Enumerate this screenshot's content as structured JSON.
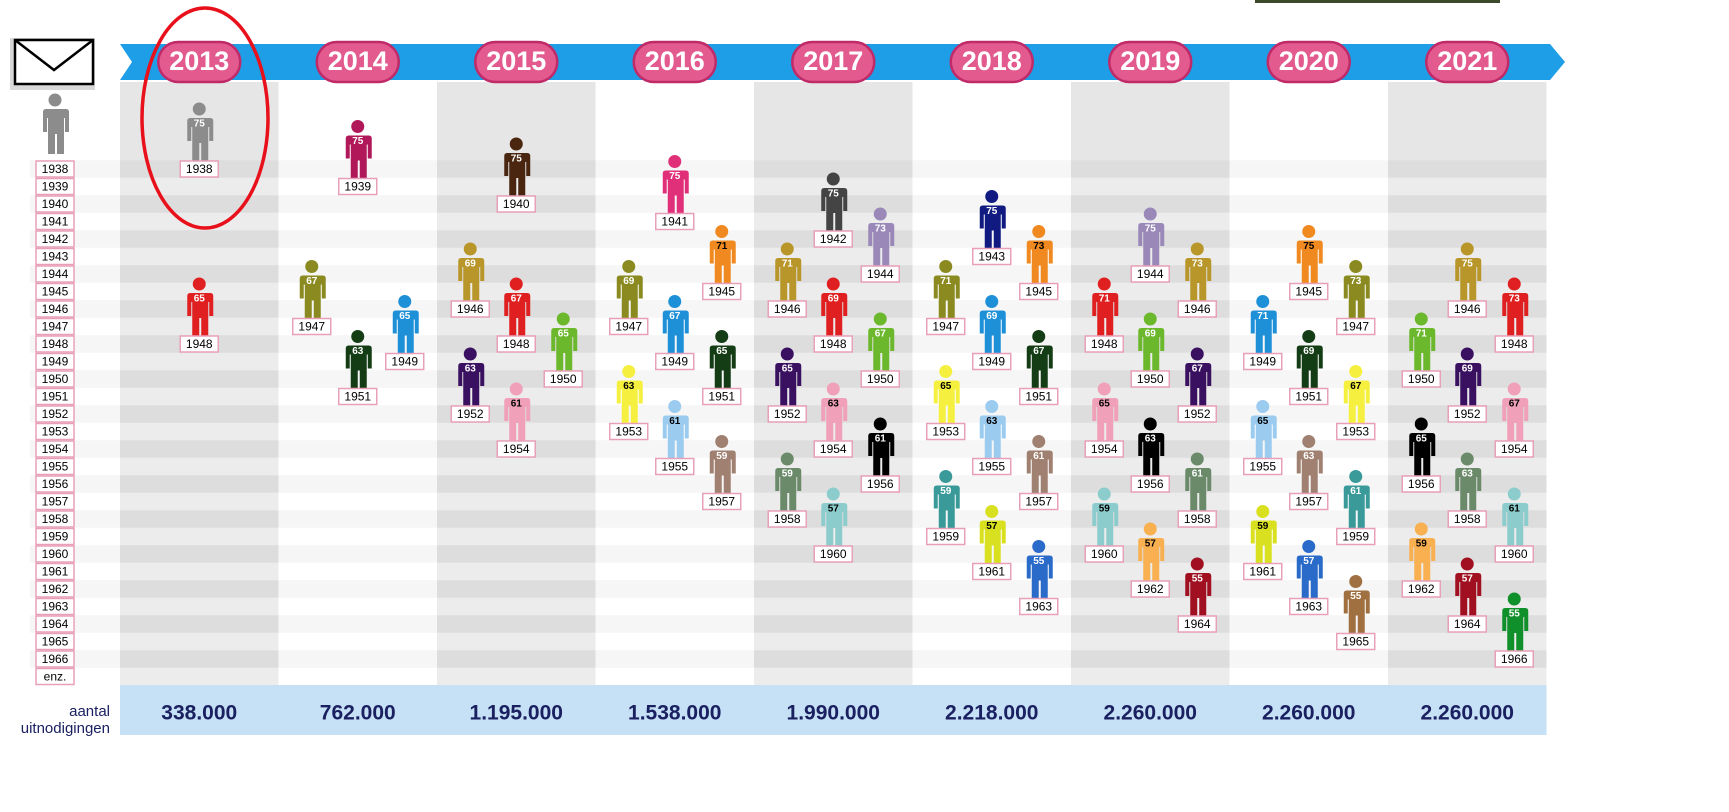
{
  "row_labels": [
    "1938",
    "1939",
    "1940",
    "1941",
    "1942",
    "1943",
    "1944",
    "1945",
    "1946",
    "1947",
    "1948",
    "1949",
    "1950",
    "1951",
    "1952",
    "1953",
    "1954",
    "1955",
    "1956",
    "1957",
    "1958",
    "1959",
    "1960",
    "1961",
    "1962",
    "1963",
    "1964",
    "1965",
    "1966",
    "enz."
  ],
  "footer_label": [
    "aantal",
    "uitnodigingen"
  ],
  "columns": [
    {
      "year": "2013",
      "total": "338.000",
      "people": [
        {
          "age": "75",
          "birth_year": "1938",
          "color": "#8c8c8c"
        },
        {
          "age": "65",
          "birth_year": "1948",
          "color": "#e02020"
        }
      ]
    },
    {
      "year": "2014",
      "total": "762.000",
      "people": [
        {
          "age": "75",
          "birth_year": "1939",
          "color": "#b0185a"
        },
        {
          "age": "67",
          "birth_year": "1947",
          "color": "#8a8a20"
        },
        {
          "age": "63",
          "birth_year": "1951",
          "color": "#153d15"
        },
        {
          "age": "65",
          "birth_year": "1949",
          "color": "#1e90d8"
        }
      ]
    },
    {
      "year": "2015",
      "total": "1.195.000",
      "people": [
        {
          "age": "75",
          "birth_year": "1940",
          "color": "#4a2510"
        },
        {
          "age": "69",
          "birth_year": "1946",
          "color": "#b8962a"
        },
        {
          "age": "67",
          "birth_year": "1948",
          "color": "#e02020"
        },
        {
          "age": "65",
          "birth_year": "1950",
          "color": "#6cb82c"
        },
        {
          "age": "63",
          "birth_year": "1952",
          "color": "#3a1060"
        },
        {
          "age": "61",
          "birth_year": "1954",
          "color": "#f0a0b8"
        }
      ]
    },
    {
      "year": "2016",
      "total": "1.538.000",
      "people": [
        {
          "age": "75",
          "birth_year": "1941",
          "color": "#e0307a"
        },
        {
          "age": "71",
          "birth_year": "1945",
          "color": "#f08a20"
        },
        {
          "age": "69",
          "birth_year": "1947",
          "color": "#8a8a20"
        },
        {
          "age": "67",
          "birth_year": "1949",
          "color": "#1e90d8"
        },
        {
          "age": "65",
          "birth_year": "1951",
          "color": "#153d15"
        },
        {
          "age": "63",
          "birth_year": "1953",
          "color": "#f5f040"
        },
        {
          "age": "61",
          "birth_year": "1955",
          "color": "#9ccbf0"
        },
        {
          "age": "59",
          "birth_year": "1957",
          "color": "#a08070"
        }
      ]
    },
    {
      "year": "2017",
      "total": "1.990.000",
      "people": [
        {
          "age": "75",
          "birth_year": "1942",
          "color": "#444444"
        },
        {
          "age": "73",
          "birth_year": "1944",
          "color": "#9a88b8"
        },
        {
          "age": "71",
          "birth_year": "1946",
          "color": "#b8962a"
        },
        {
          "age": "69",
          "birth_year": "1948",
          "color": "#e02020"
        },
        {
          "age": "67",
          "birth_year": "1950",
          "color": "#6cb82c"
        },
        {
          "age": "65",
          "birth_year": "1952",
          "color": "#3a1060"
        },
        {
          "age": "63",
          "birth_year": "1954",
          "color": "#f0a0b8"
        },
        {
          "age": "61",
          "birth_year": "1956",
          "color": "#000000"
        },
        {
          "age": "59",
          "birth_year": "1958",
          "color": "#6a8a6a"
        },
        {
          "age": "57",
          "birth_year": "1960",
          "color": "#8ccccc"
        }
      ]
    },
    {
      "year": "2018",
      "total": "2.218.000",
      "people": [
        {
          "age": "75",
          "birth_year": "1943",
          "color": "#101a80"
        },
        {
          "age": "73",
          "birth_year": "1945",
          "color": "#f08a20"
        },
        {
          "age": "71",
          "birth_year": "1947",
          "color": "#8a8a20"
        },
        {
          "age": "69",
          "birth_year": "1949",
          "color": "#1e90d8"
        },
        {
          "age": "67",
          "birth_year": "1951",
          "color": "#153d15"
        },
        {
          "age": "65",
          "birth_year": "1953",
          "color": "#f5f040"
        },
        {
          "age": "63",
          "birth_year": "1955",
          "color": "#9ccbf0"
        },
        {
          "age": "61",
          "birth_year": "1957",
          "color": "#a08070"
        },
        {
          "age": "59",
          "birth_year": "1959",
          "color": "#3a9a9a"
        },
        {
          "age": "57",
          "birth_year": "1961",
          "color": "#d8e020"
        },
        {
          "age": "55",
          "birth_year": "1963",
          "color": "#2a6ac8"
        }
      ]
    },
    {
      "year": "2019",
      "total": "2.260.000",
      "people": [
        {
          "age": "75",
          "birth_year": "1944",
          "color": "#9a88b8"
        },
        {
          "age": "73",
          "birth_year": "1946",
          "color": "#b8962a"
        },
        {
          "age": "71",
          "birth_year": "1948",
          "color": "#e02020"
        },
        {
          "age": "69",
          "birth_year": "1950",
          "color": "#6cb82c"
        },
        {
          "age": "67",
          "birth_year": "1952",
          "color": "#3a1060"
        },
        {
          "age": "65",
          "birth_year": "1954",
          "color": "#f0a0b8"
        },
        {
          "age": "63",
          "birth_year": "1956",
          "color": "#000000"
        },
        {
          "age": "61",
          "birth_year": "1958",
          "color": "#6a8a6a"
        },
        {
          "age": "59",
          "birth_year": "1960",
          "color": "#8ccccc"
        },
        {
          "age": "57",
          "birth_year": "1962",
          "color": "#f8b050"
        },
        {
          "age": "55",
          "birth_year": "1964",
          "color": "#a01020"
        }
      ]
    },
    {
      "year": "2020",
      "total": "2.260.000",
      "people": [
        {
          "age": "75",
          "birth_year": "1945",
          "color": "#f08a20"
        },
        {
          "age": "73",
          "birth_year": "1947",
          "color": "#8a8a20"
        },
        {
          "age": "71",
          "birth_year": "1949",
          "color": "#1e90d8"
        },
        {
          "age": "69",
          "birth_year": "1951",
          "color": "#153d15"
        },
        {
          "age": "67",
          "birth_year": "1953",
          "color": "#f5f040"
        },
        {
          "age": "65",
          "birth_year": "1955",
          "color": "#9ccbf0"
        },
        {
          "age": "63",
          "birth_year": "1957",
          "color": "#a08070"
        },
        {
          "age": "61",
          "birth_year": "1959",
          "color": "#3a9a9a"
        },
        {
          "age": "59",
          "birth_year": "1961",
          "color": "#d8e020"
        },
        {
          "age": "57",
          "birth_year": "1963",
          "color": "#2a6ac8"
        },
        {
          "age": "55",
          "birth_year": "1965",
          "color": "#a07040"
        }
      ]
    },
    {
      "year": "2021",
      "total": "2.260.000",
      "people": [
        {
          "age": "75",
          "birth_year": "1946",
          "color": "#b8962a"
        },
        {
          "age": "73",
          "birth_year": "1948",
          "color": "#e02020"
        },
        {
          "age": "71",
          "birth_year": "1950",
          "color": "#6cb82c"
        },
        {
          "age": "69",
          "birth_year": "1952",
          "color": "#3a1060"
        },
        {
          "age": "67",
          "birth_year": "1954",
          "color": "#f0a0b8"
        },
        {
          "age": "65",
          "birth_year": "1956",
          "color": "#000000"
        },
        {
          "age": "63",
          "birth_year": "1958",
          "color": "#6a8a6a"
        },
        {
          "age": "61",
          "birth_year": "1960",
          "color": "#8ccccc"
        },
        {
          "age": "59",
          "birth_year": "1962",
          "color": "#f8b050"
        },
        {
          "age": "57",
          "birth_year": "1964",
          "color": "#a01020"
        },
        {
          "age": "55",
          "birth_year": "1966",
          "color": "#10902a"
        }
      ]
    }
  ]
}
